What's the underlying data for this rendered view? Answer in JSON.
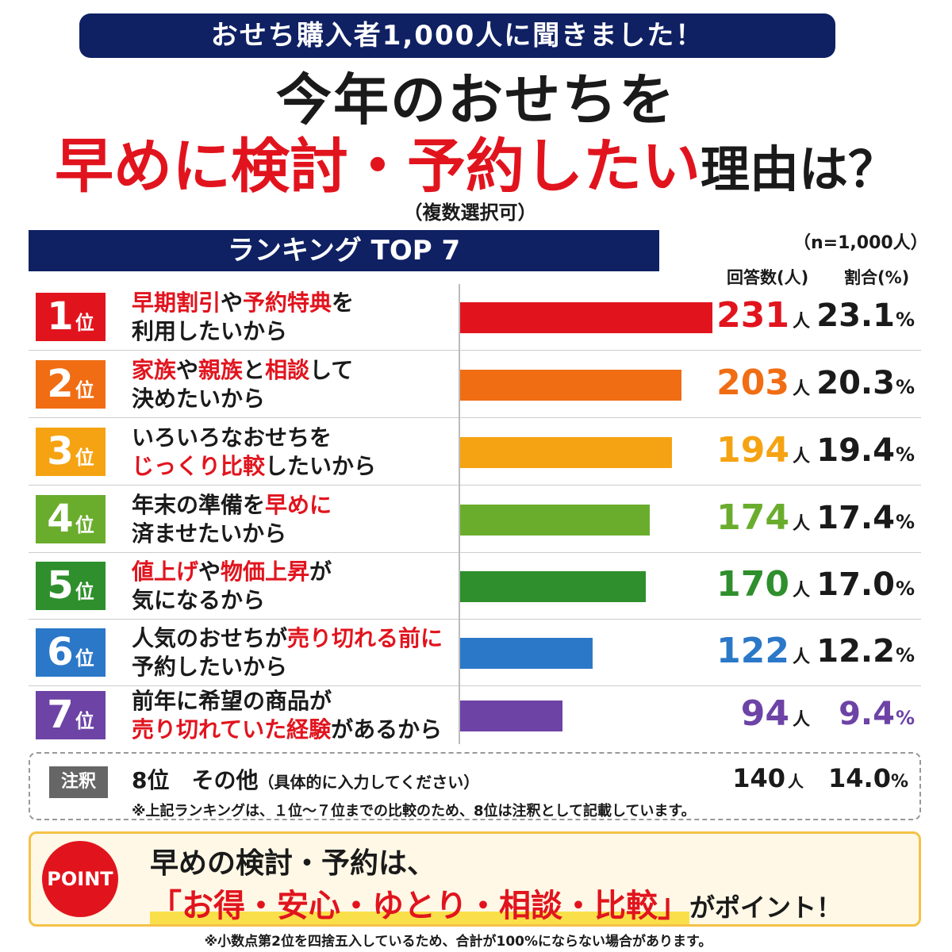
{
  "header": {
    "banner": "おせち購入者1,000人に聞きました！",
    "title_line1": "今年のおせちを",
    "title_line2_red": "早めに検討・予約したい",
    "title_line2_black": "理由は？",
    "subtitle": "（複数選択可）"
  },
  "ranking_title": "ランキング TOP 7",
  "n_label": "（n=1,000人）",
  "columns": {
    "count": "回答数(人)",
    "percent": "割合(%)"
  },
  "rank_unit": "位",
  "count_unit": "人",
  "percent_unit": "%",
  "chart_data": {
    "type": "bar",
    "orientation": "horizontal",
    "title": "今年のおせちを早めに検討・予約したい理由は？",
    "categories": [
      "早期割引や予約特典を利用したいから",
      "家族や親族と相談して決めたいから",
      "いろいろなおせちをじっくり比較したいから",
      "年末の準備を早めに済ませたいから",
      "値上げや物価上昇が気になるから",
      "人気のおせちが売り切れる前に予約したいから",
      "前年に希望の商品が売り切れていた経験があるから"
    ],
    "series": [
      {
        "values": [
          231,
          203,
          194,
          174,
          170,
          122,
          94
        ]
      }
    ],
    "percentages": [
      23.1,
      20.3,
      19.4,
      17.4,
      17.0,
      12.2,
      9.4
    ],
    "xlim": [
      0,
      231
    ],
    "grid": false,
    "legend": "none"
  },
  "rows": [
    {
      "rank": "1",
      "color": "#e1141e",
      "count": "231",
      "pct": "23.1",
      "l1": [
        {
          "t": "早期割引",
          "h": true
        },
        {
          "t": "や",
          "h": false
        },
        {
          "t": "予約特典",
          "h": true
        },
        {
          "t": "を",
          "h": false
        }
      ],
      "l2": [
        {
          "t": "利用したいから",
          "h": false
        }
      ]
    },
    {
      "rank": "2",
      "color": "#f06d14",
      "count": "203",
      "pct": "20.3",
      "l1": [
        {
          "t": "家族",
          "h": true
        },
        {
          "t": "や",
          "h": false
        },
        {
          "t": "親族",
          "h": true
        },
        {
          "t": "と",
          "h": false
        },
        {
          "t": "相談",
          "h": true
        },
        {
          "t": "して",
          "h": false
        }
      ],
      "l2": [
        {
          "t": "決めたいから",
          "h": false
        }
      ]
    },
    {
      "rank": "3",
      "color": "#f5a312",
      "count": "194",
      "pct": "19.4",
      "l1": [
        {
          "t": "いろいろなおせちを",
          "h": false
        }
      ],
      "l2": [
        {
          "t": "じっくり比較",
          "h": true
        },
        {
          "t": "したいから",
          "h": false
        }
      ]
    },
    {
      "rank": "4",
      "color": "#6aad2d",
      "count": "174",
      "pct": "17.4",
      "l1": [
        {
          "t": "年末の準備を",
          "h": false
        },
        {
          "t": "早めに",
          "h": true
        }
      ],
      "l2": [
        {
          "t": "済ませたいから",
          "h": false
        }
      ]
    },
    {
      "rank": "5",
      "color": "#2e8f2c",
      "count": "170",
      "pct": "17.0",
      "l1": [
        {
          "t": "値上げ",
          "h": true
        },
        {
          "t": "や",
          "h": false
        },
        {
          "t": "物価上昇",
          "h": true
        },
        {
          "t": "が",
          "h": false
        }
      ],
      "l2": [
        {
          "t": "気になるから",
          "h": false
        }
      ]
    },
    {
      "rank": "6",
      "color": "#2b78c8",
      "count": "122",
      "pct": "12.2",
      "l1": [
        {
          "t": "人気のおせちが",
          "h": false
        },
        {
          "t": "売り切れる前に",
          "h": true
        }
      ],
      "l2": [
        {
          "t": "予約したいから",
          "h": false
        }
      ]
    },
    {
      "rank": "7",
      "color": "#6d43a6",
      "count": "94",
      "pct": "9.4",
      "l1": [
        {
          "t": "前年に希望の商品が",
          "h": false
        }
      ],
      "l2": [
        {
          "t": "売り切れていた経験",
          "h": true
        },
        {
          "t": "があるから",
          "h": false
        }
      ]
    }
  ],
  "note": {
    "tag": "注釈",
    "rank8": "8位　その他",
    "rank8_detail": "（具体的に入力してください）",
    "count": "140",
    "pct": "14.0",
    "annotation": "※上記ランキングは、１位～７位までの比較のため、8位は注釈として記載しています。"
  },
  "point": {
    "badge": "POINT",
    "line1": "早めの検討・予約は、",
    "line2_open": "「",
    "line2_highlight": "お得・安心・ゆとり・相談・比較",
    "line2_close": "」",
    "line2_tail": "がポイント！"
  },
  "footnote": "※小数点第2位を四捨五入しているため、合計が100%にならない場合があります。"
}
